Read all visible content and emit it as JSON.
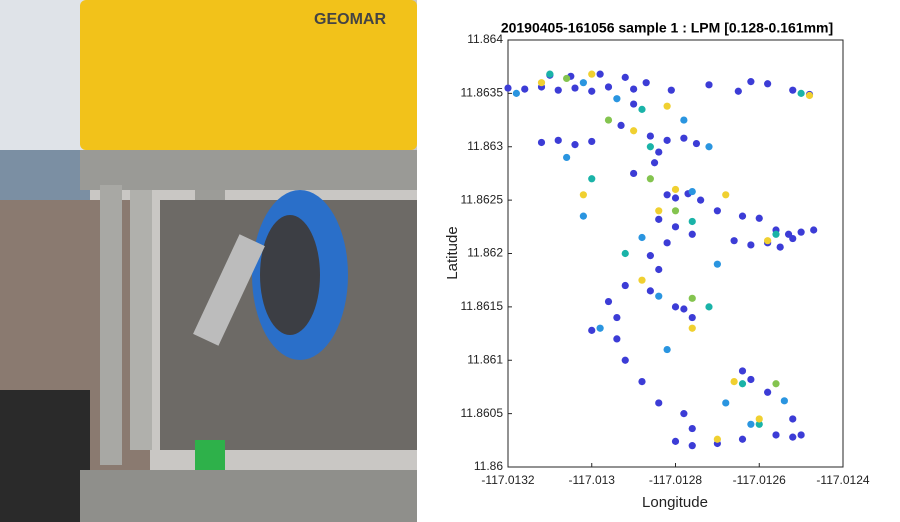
{
  "photo": {
    "label": "GEOMAR"
  },
  "chart_data": {
    "type": "scatter",
    "title": "20190405-161056 sample 1 : LPM [0.128-0.161mm]",
    "xlabel": "Longitude",
    "ylabel": "Latitude",
    "xlim": [
      -117.0132,
      -117.0124
    ],
    "xticks": [
      -117.0132,
      -117.013,
      -117.0128,
      -117.0126,
      -117.0124
    ],
    "ylim": [
      11.86,
      11.864
    ],
    "yticks": [
      11.86,
      11.8605,
      11.861,
      11.8615,
      11.862,
      11.8625,
      11.863,
      11.8635,
      11.864
    ],
    "series": [
      {
        "color": "#3c3cd6",
        "x": [
          -117.0132,
          -117.01316,
          -117.01312,
          -117.01308,
          -117.01304,
          -117.013,
          -117.01296,
          -117.0129,
          -117.0131,
          -117.01305,
          -117.01298,
          -117.01292,
          -117.01287,
          -117.01281,
          -117.01272,
          -117.01262,
          -117.01258,
          -117.01252,
          -117.01248,
          -117.01265,
          -117.01312,
          -117.01308,
          -117.01304,
          -117.013,
          -117.01293,
          -117.0129,
          -117.01286,
          -117.01282,
          -117.01278,
          -117.01275,
          -117.01284,
          -117.0129,
          -117.01285,
          -117.01282,
          -117.0128,
          -117.01277,
          -117.01274,
          -117.0127,
          -117.01264,
          -117.0126,
          -117.01256,
          -117.01253,
          -117.0125,
          -117.01247,
          -117.01252,
          -117.01266,
          -117.01262,
          -117.01258,
          -117.01255,
          -117.01284,
          -117.0128,
          -117.01276,
          -117.01282,
          -117.01286,
          -117.01284,
          -117.01292,
          -117.01296,
          -117.01294,
          -117.0128,
          -117.01278,
          -117.01276,
          -117.013,
          -117.01294,
          -117.01292,
          -117.01288,
          -117.01284,
          -117.01278,
          -117.01276,
          -117.0128,
          -117.01276,
          -117.0127,
          -117.01264,
          -117.01262,
          -117.01258,
          -117.01252,
          -117.01256,
          -117.01252,
          -117.0125,
          -117.01264,
          -117.01286
        ],
        "values": [
          11.86355,
          11.86354,
          11.86356,
          11.86353,
          11.86355,
          11.86352,
          11.86356,
          11.86354,
          11.86367,
          11.86366,
          11.86368,
          11.86365,
          11.8636,
          11.86353,
          11.86358,
          11.86361,
          11.86359,
          11.86353,
          11.86349,
          11.86352,
          11.86304,
          11.86306,
          11.86302,
          11.86305,
          11.8632,
          11.8634,
          11.8631,
          11.86306,
          11.86308,
          11.86303,
          11.86295,
          11.86275,
          11.86285,
          11.86255,
          11.86252,
          11.86256,
          11.8625,
          11.8624,
          11.86235,
          11.86233,
          11.86222,
          11.86218,
          11.8622,
          11.86222,
          11.86214,
          11.86212,
          11.86208,
          11.8621,
          11.86206,
          11.86232,
          11.86225,
          11.86218,
          11.8621,
          11.86198,
          11.86185,
          11.8617,
          11.86155,
          11.8614,
          11.8615,
          11.86148,
          11.8614,
          11.86128,
          11.8612,
          11.861,
          11.8608,
          11.8606,
          11.8605,
          11.86036,
          11.86024,
          11.8602,
          11.86022,
          11.8609,
          11.86082,
          11.8607,
          11.86045,
          11.8603,
          11.86028,
          11.8603,
          11.86026,
          11.86165
        ]
      },
      {
        "color": "#2a95e0",
        "x": [
          -117.01318,
          -117.01302,
          -117.01294,
          -117.01278,
          -117.01306,
          -117.01272,
          -117.01302,
          -117.01276,
          -117.01288,
          -117.0127,
          -117.01284,
          -117.01298,
          -117.01282,
          -117.01262,
          -117.01268,
          -117.01254
        ],
        "values": [
          11.8635,
          11.8636,
          11.86345,
          11.86325,
          11.8629,
          11.863,
          11.86235,
          11.86258,
          11.86215,
          11.8619,
          11.8616,
          11.8613,
          11.8611,
          11.8604,
          11.8606,
          11.86062
        ]
      },
      {
        "color": "#1ab3a8",
        "x": [
          -117.0131,
          -117.01288,
          -117.013,
          -117.01276,
          -117.01256,
          -117.01292,
          -117.01264,
          -117.0125,
          -117.01286,
          -117.01272,
          -117.0126
        ],
        "values": [
          11.86368,
          11.86335,
          11.8627,
          11.8623,
          11.86218,
          11.862,
          11.86078,
          11.8635,
          11.863,
          11.8615,
          11.8604
        ]
      },
      {
        "color": "#f0d030",
        "x": [
          -117.013,
          -117.01282,
          -117.01248,
          -117.0129,
          -117.0128,
          -117.01268,
          -117.01302,
          -117.01284,
          -117.01258,
          -117.01288,
          -117.01276,
          -117.01266,
          -117.0127,
          -117.0126,
          -117.01312
        ],
        "values": [
          11.86368,
          11.86338,
          11.86348,
          11.86315,
          11.8626,
          11.86255,
          11.86255,
          11.8624,
          11.86212,
          11.86175,
          11.8613,
          11.8608,
          11.86026,
          11.86045,
          11.8636
        ]
      },
      {
        "color": "#84c44f",
        "x": [
          -117.01306,
          -117.01296,
          -117.01286,
          -117.01276,
          -117.0128,
          -117.01256
        ],
        "values": [
          11.86364,
          11.86325,
          11.8627,
          11.86158,
          11.8624,
          11.86078
        ]
      }
    ]
  }
}
